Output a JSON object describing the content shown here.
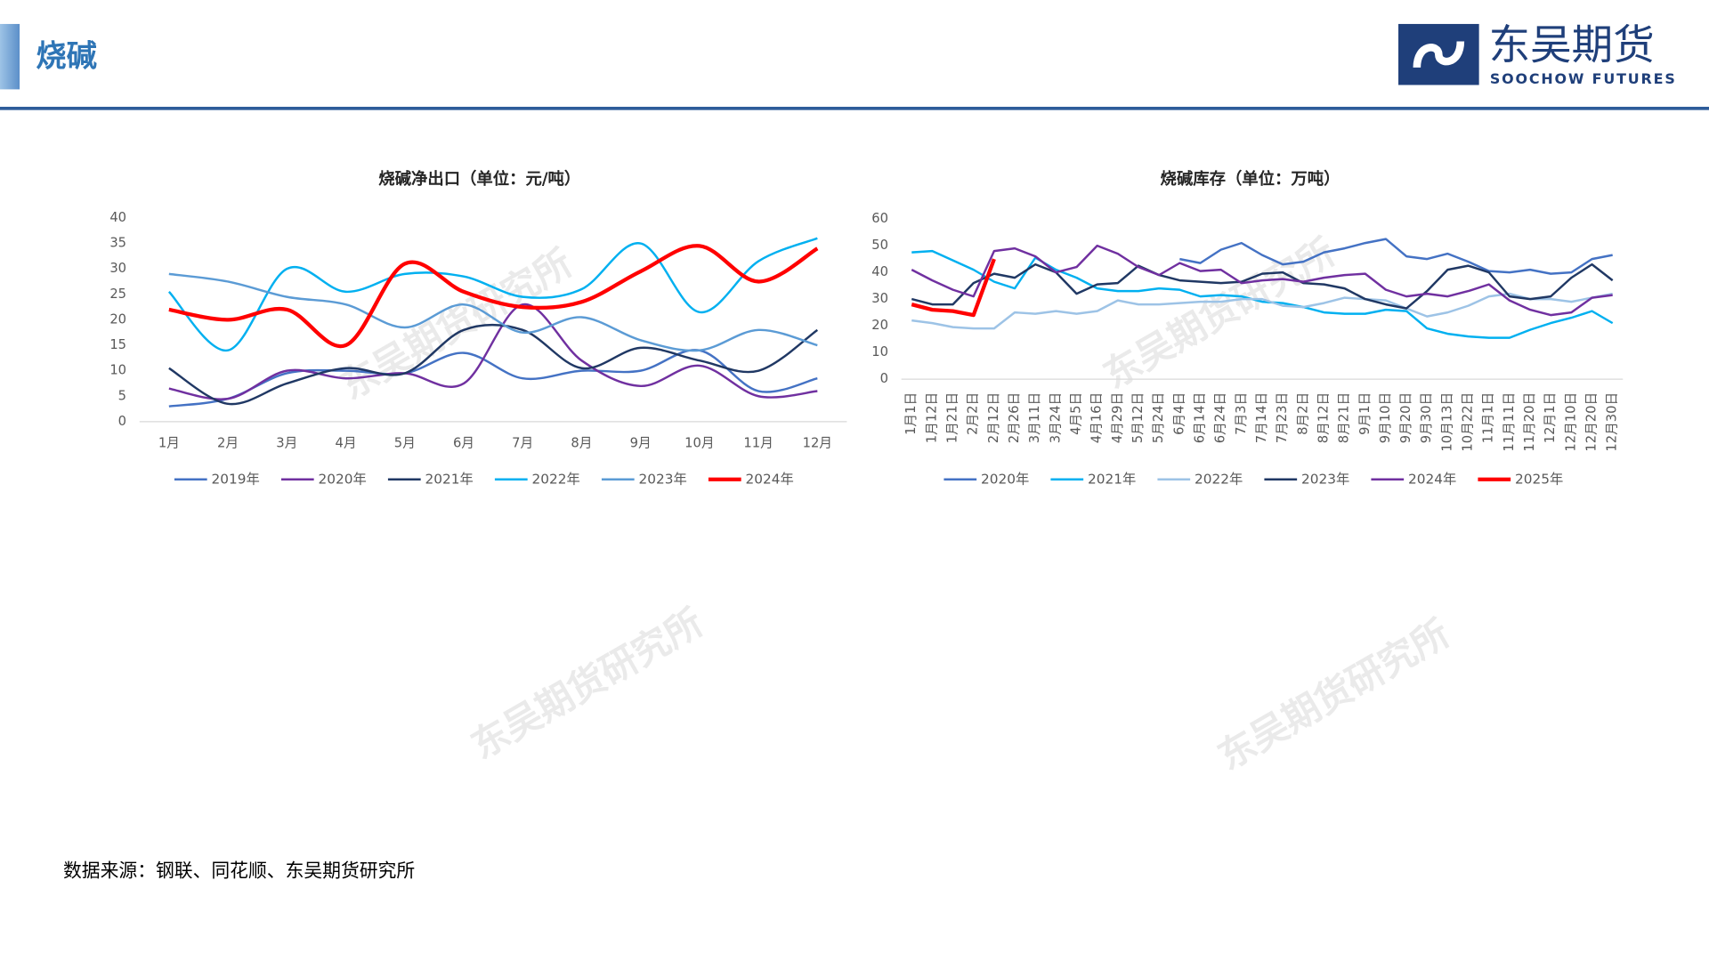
{
  "header": {
    "title": "烧碱",
    "logo_cn": "东吴期货",
    "logo_en": "SOOCHOW FUTURES"
  },
  "watermark": "东吴期货研究所",
  "source": "数据来源：钢联、同花顺、东吴期货研究所",
  "chart_data": [
    {
      "type": "line",
      "smooth": true,
      "title": "烧碱净出口（单位：元/吨）",
      "categories": [
        "1月",
        "2月",
        "3月",
        "4月",
        "5月",
        "6月",
        "7月",
        "8月",
        "9月",
        "10月",
        "11月",
        "12月"
      ],
      "ylim": [
        0,
        40
      ],
      "yticks": [
        0,
        5,
        10,
        15,
        20,
        25,
        30,
        35,
        40
      ],
      "series": [
        {
          "name": "2019年",
          "color": "#4472c4",
          "values": [
            3,
            4.5,
            9.5,
            10,
            9.5,
            13.5,
            8.5,
            10,
            10,
            14,
            6,
            8.5
          ]
        },
        {
          "name": "2020年",
          "color": "#7030a0",
          "values": [
            6.5,
            4.5,
            10,
            8.5,
            9.5,
            7.5,
            23,
            12,
            7,
            11,
            5,
            6
          ]
        },
        {
          "name": "2021年",
          "color": "#203864",
          "values": [
            10.5,
            3.5,
            7.5,
            10.5,
            9.5,
            18,
            18,
            10.5,
            14.5,
            12,
            10,
            18
          ]
        },
        {
          "name": "2022年",
          "color": "#00b0f0",
          "values": [
            25.5,
            14,
            30,
            25.5,
            29,
            28.5,
            24.5,
            26,
            35,
            21.5,
            31.5,
            36
          ]
        },
        {
          "name": "2023年",
          "color": "#5b9bd5",
          "values": [
            29,
            27.5,
            24.5,
            23,
            18.5,
            23,
            17.5,
            20.5,
            16,
            14,
            18,
            15
          ]
        },
        {
          "name": "2024年",
          "color": "#ff0000",
          "values": [
            22,
            20,
            22,
            15,
            31,
            25.5,
            22.5,
            23.5,
            29.5,
            34.5,
            27.5,
            34
          ]
        }
      ]
    },
    {
      "type": "line",
      "smooth": false,
      "title": "烧碱库存（单位：万吨）",
      "categories": [
        "1月1日",
        "1月12日",
        "1月21日",
        "2月2日",
        "2月12日",
        "2月26日",
        "3月11日",
        "3月24日",
        "4月5日",
        "4月16日",
        "4月29日",
        "5月12日",
        "5月24日",
        "6月4日",
        "6月14日",
        "6月24日",
        "7月3日",
        "7月14日",
        "7月23日",
        "8月2日",
        "8月12日",
        "8月21日",
        "9月1日",
        "9月10日",
        "9月20日",
        "9月30日",
        "10月13日",
        "10月22日",
        "11月1日",
        "11月11日",
        "11月20日",
        "12月1日",
        "12月10日",
        "12月20日",
        "12月30日"
      ],
      "ylim": [
        0,
        60
      ],
      "yticks": [
        0,
        10,
        20,
        30,
        40,
        50,
        60
      ],
      "series": [
        {
          "name": "2020年",
          "color": "#4472c4",
          "values": [
            null,
            null,
            null,
            null,
            null,
            null,
            null,
            null,
            null,
            null,
            null,
            null,
            null,
            45,
            43.5,
            48.5,
            51,
            46.5,
            43,
            44,
            47.5,
            49,
            51,
            52.5,
            46,
            45,
            47,
            44,
            40.5,
            40,
            41,
            39.5,
            40,
            45,
            46.5
          ]
        },
        {
          "name": "2021年",
          "color": "#00b0f0",
          "values": [
            47.5,
            48,
            44.5,
            41,
            36.5,
            34,
            45.5,
            41,
            38,
            34,
            33,
            33,
            34,
            33.5,
            31,
            31.5,
            31,
            29,
            28.5,
            27,
            25,
            24.5,
            24.5,
            26,
            25.5,
            19,
            17,
            16,
            15.5,
            15.5,
            18.5,
            21,
            23,
            25.5,
            21
          ]
        },
        {
          "name": "2022年",
          "color": "#9dc3e6",
          "values": [
            22,
            21,
            19.5,
            19,
            19,
            25,
            24.5,
            25.5,
            24.5,
            25.5,
            29.5,
            28,
            28,
            28.5,
            29,
            29,
            30,
            30,
            27.5,
            27,
            28.5,
            30.5,
            30,
            29.5,
            26.5,
            23.5,
            25,
            27.5,
            31,
            32,
            30,
            30,
            29,
            30.5,
            32
          ]
        },
        {
          "name": "2023年",
          "color": "#203864",
          "values": [
            30,
            28,
            28,
            36,
            39.5,
            38,
            43,
            40,
            32,
            35.5,
            36,
            42.5,
            39,
            37,
            36.5,
            36,
            36.5,
            39.5,
            40,
            36,
            35.5,
            34,
            30,
            28,
            26.5,
            33,
            41,
            42.5,
            40,
            31,
            30,
            31,
            38,
            43,
            37
          ]
        },
        {
          "name": "2024年",
          "color": "#7030a0",
          "values": [
            41,
            37,
            33.5,
            31,
            48,
            49,
            46,
            40,
            42,
            50,
            47,
            42,
            39,
            43.5,
            40.5,
            41,
            36,
            37,
            37.5,
            36.5,
            38,
            39,
            39.5,
            33.5,
            31,
            32,
            31,
            33,
            35.5,
            29.5,
            26,
            24,
            25,
            30.5,
            31.5
          ]
        },
        {
          "name": "2025年",
          "color": "#ff0000",
          "values": [
            28,
            26,
            25.5,
            24,
            45,
            null,
            null,
            null,
            null,
            null,
            null,
            null,
            null,
            null,
            null,
            null,
            null,
            null,
            null,
            null,
            null,
            null,
            null,
            null,
            null,
            null,
            null,
            null,
            null,
            null,
            null,
            null,
            null,
            null,
            null
          ]
        }
      ]
    }
  ]
}
